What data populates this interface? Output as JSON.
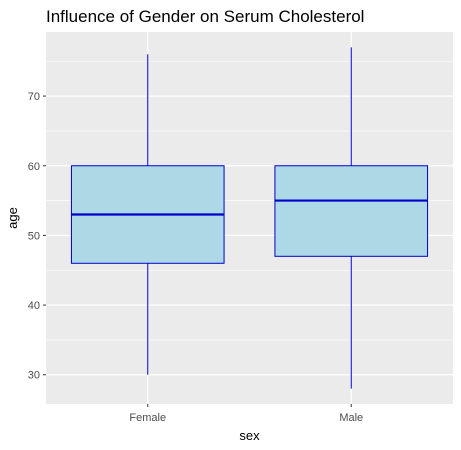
{
  "chart_data": {
    "type": "boxplot",
    "title": "Influence of Gender on Serum Cholesterol",
    "xlabel": "sex",
    "ylabel": "age",
    "categories": [
      "Female",
      "Male"
    ],
    "yticks": [
      30,
      40,
      50,
      60,
      70
    ],
    "ylim": [
      25.8,
      79.2
    ],
    "grid": true,
    "boxes": [
      {
        "category": "Female",
        "min": 30,
        "q1": 46,
        "median": 53,
        "q3": 60,
        "max": 76
      },
      {
        "category": "Male",
        "min": 28,
        "q1": 47,
        "median": 55,
        "q3": 60,
        "max": 77
      }
    ],
    "colors": {
      "panel": "#ebebeb",
      "grid": "#ffffff",
      "box_fill": "#add8e6",
      "box_stroke": "#0000cd",
      "median": "#0000cd",
      "whisker": "#0000cd"
    }
  }
}
